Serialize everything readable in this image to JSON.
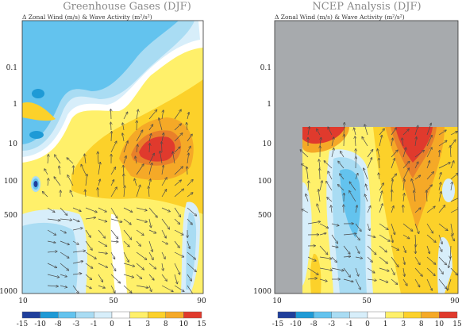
{
  "panels": [
    {
      "title": "Greenhouse Gases (DJF)",
      "subtitle": "Δ Zonal Wind (m/s) & Wave Activity (m²/s²)",
      "x_ticks": [
        "10",
        "50",
        "90"
      ],
      "y_ticks": [
        "0.1",
        "1",
        "10",
        "100",
        "500",
        "1000"
      ]
    },
    {
      "title": "NCEP Analysis (DJF)",
      "subtitle": "Δ Zonal Wind (m/s) & Wave Activity (m²/s²)",
      "x_ticks": [
        "10",
        "50",
        "90"
      ],
      "y_ticks": [
        "0.1",
        "1",
        "10",
        "100",
        "500",
        "1000"
      ]
    }
  ],
  "colorbar": {
    "labels": [
      "-15",
      "-10",
      "-8",
      "-3",
      "-1",
      "0",
      "1",
      "3",
      "8",
      "10",
      "15"
    ],
    "colors": [
      "#1f3f9c",
      "#1e9ad6",
      "#63c3ee",
      "#a9dcf3",
      "#d7eefa",
      "#ffffff",
      "#fff06a",
      "#fcd12a",
      "#f5a927",
      "#e9802a",
      "#e03a2d"
    ]
  },
  "colors": {
    "background": "#ffffff",
    "masked": "#a7aaad",
    "arrow": "#4a4a4a"
  },
  "chart_data": [
    {
      "type": "contour",
      "title": "Greenhouse Gases (DJF)",
      "subtitle": "Δ Zonal Wind (m/s) & Wave Activity (m²/s²)",
      "x_ticks": [
        10,
        50,
        90
      ],
      "y_ticks_hPa": [
        0.1,
        1,
        10,
        100,
        500,
        1000
      ],
      "xlim": [
        10,
        90
      ],
      "y_axis": "pressure (log scale, inverted)",
      "features": [
        {
          "region": "upper stratosphere, 10–55",
          "sign": "negative",
          "range": [
            -3,
            -1
          ]
        },
        {
          "region": "mid stratosphere ~10 hPa, 60–80",
          "sign": "positive",
          "max_range": [
            10,
            15
          ]
        },
        {
          "region": "troposphere 30–40",
          "sign": "negative",
          "range": [
            -3,
            -1
          ]
        },
        {
          "region": "troposphere 60–85",
          "sign": "positive",
          "range": [
            1,
            3
          ]
        }
      ],
      "vectors": "wave activity arrows, mostly upward/poleward"
    },
    {
      "type": "contour",
      "title": "NCEP Analysis (DJF)",
      "subtitle": "Δ Zonal Wind (m/s) & Wave Activity (m²/s²)",
      "x_ticks": [
        10,
        50,
        90
      ],
      "y_ticks_hPa": [
        0.1,
        1,
        10,
        100,
        500,
        1000
      ],
      "xlim": [
        10,
        90
      ],
      "y_axis": "pressure (log scale, inverted)",
      "masked": "no data above ~5 hPa and equatorward of ~25",
      "features": [
        {
          "region": "stratosphere ~10 hPa, 30–40",
          "sign": "positive",
          "max_range": [
            10,
            15
          ]
        },
        {
          "region": "stratosphere ~10 hPa, 65–75",
          "sign": "positive",
          "max_range": [
            10,
            15
          ]
        },
        {
          "region": "troposphere 40–50",
          "sign": "negative",
          "range": [
            -3,
            -1
          ]
        },
        {
          "region": "troposphere 55–75",
          "sign": "positive",
          "range": [
            3,
            8
          ]
        }
      ],
      "vectors": "wave activity arrows, mostly upward/poleward"
    }
  ]
}
